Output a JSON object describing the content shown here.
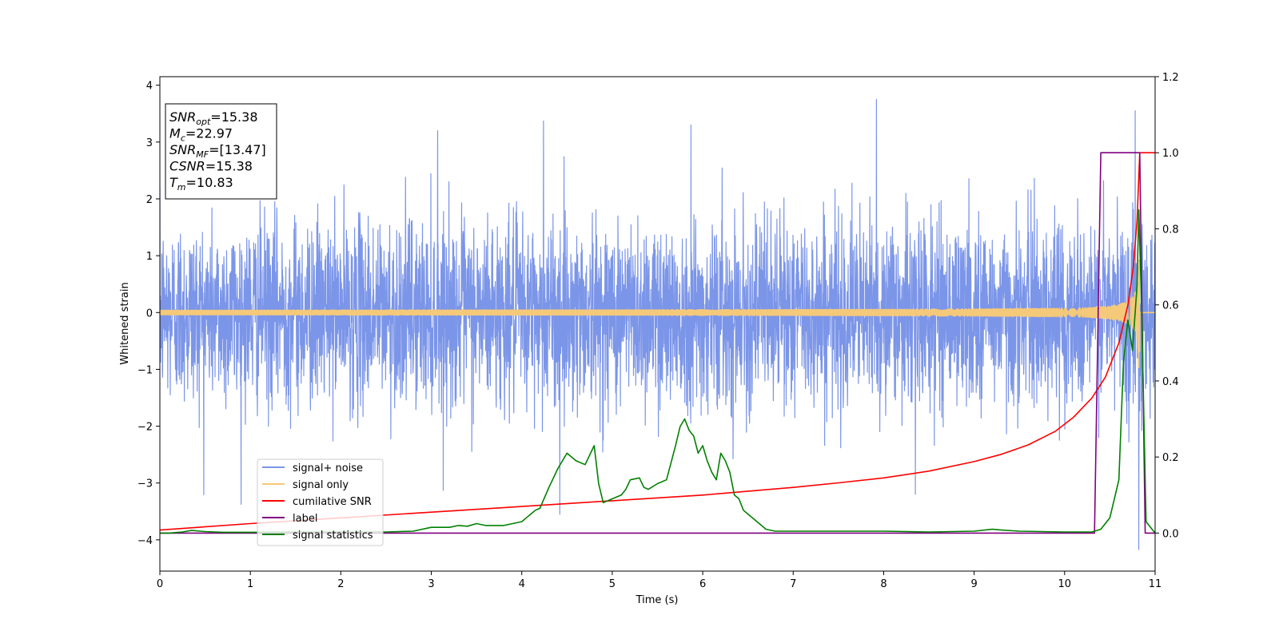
{
  "chart_data": {
    "type": "line",
    "xlabel": "Time (s)",
    "ylabel": "Whitened strain",
    "xlim": [
      0,
      11
    ],
    "ylim": [
      -4.55,
      4.15
    ],
    "y2lim": [
      -0.1,
      1.2
    ],
    "grid": false,
    "xticks": [
      0,
      1,
      2,
      3,
      4,
      5,
      6,
      7,
      8,
      9,
      10,
      11
    ],
    "yticks": [
      -4,
      -3,
      -2,
      -1,
      0,
      1,
      2,
      3,
      4
    ],
    "y2ticks": [
      0.0,
      0.2,
      0.4,
      0.6,
      0.8,
      1.0,
      1.2
    ],
    "info_box": {
      "lines": [
        {
          "sym": "SNR",
          "sub": "opt",
          "value": "=15.38"
        },
        {
          "sym": "M",
          "sub": "c",
          "value": "=22.97"
        },
        {
          "sym": "SNR",
          "sub": "MF",
          "value": "=[13.47]"
        },
        {
          "sym": "CSNR",
          "sub": "",
          "value": "=15.38"
        },
        {
          "sym": "T",
          "sub": "m",
          "value": "=10.83"
        }
      ]
    },
    "legend": {
      "placement": "lower-left",
      "entries": [
        {
          "label": "signal+ noise",
          "color": "#7b95e8"
        },
        {
          "label": "signal only",
          "color": "#f5c97a"
        },
        {
          "label": "cumilative SNR",
          "color": "#ff0000"
        },
        {
          "label": "label",
          "color": "#800080"
        },
        {
          "label": "signal statistics",
          "color": "#008000"
        }
      ]
    },
    "series": [
      {
        "name": "signal+ noise",
        "axis": "left",
        "color": "#7b95e8",
        "kind": "noise",
        "sigma": 0.8,
        "peaks": [
          [
            7.92,
            3.75
          ],
          [
            10.82,
            -4.17
          ],
          [
            10.78,
            3.55
          ],
          [
            4.42,
            -3.55
          ],
          [
            4.24,
            3.37
          ],
          [
            8.35,
            -3.2
          ],
          [
            3.07,
            3.2
          ],
          [
            5.87,
            3.3
          ]
        ]
      },
      {
        "name": "signal only",
        "axis": "left",
        "color": "#f5c97a",
        "kind": "chirp",
        "tm": 10.83,
        "amp_start": 0.04,
        "amp_peak": 1.0
      },
      {
        "name": "cumilative SNR",
        "axis": "right",
        "color": "#ff0000",
        "x": [
          0,
          1,
          2,
          3,
          4,
          5,
          6,
          7,
          7.5,
          8,
          8.5,
          9,
          9.3,
          9.6,
          9.9,
          10.1,
          10.3,
          10.45,
          10.6,
          10.7,
          10.76,
          10.8,
          10.83,
          10.86,
          11
        ],
        "y": [
          0.008,
          0.025,
          0.04,
          0.055,
          0.07,
          0.085,
          0.1,
          0.12,
          0.132,
          0.145,
          0.163,
          0.188,
          0.207,
          0.232,
          0.268,
          0.305,
          0.355,
          0.41,
          0.5,
          0.6,
          0.7,
          0.82,
          1.0,
          1.0,
          1.0
        ]
      },
      {
        "name": "label",
        "axis": "right",
        "color": "#800080",
        "x": [
          0,
          10.33,
          10.4,
          10.83,
          10.89,
          11
        ],
        "y": [
          0,
          0,
          1,
          1,
          0,
          0
        ]
      },
      {
        "name": "signal statistics",
        "axis": "right",
        "color": "#008000",
        "x": [
          0,
          0.1,
          0.25,
          0.35,
          0.5,
          0.7,
          1,
          1.5,
          2,
          2.5,
          2.8,
          3.0,
          3.2,
          3.3,
          3.4,
          3.5,
          3.6,
          3.8,
          3.9,
          4.0,
          4.05,
          4.1,
          4.15,
          4.2,
          4.3,
          4.4,
          4.5,
          4.6,
          4.7,
          4.8,
          4.85,
          4.9,
          5.0,
          5.1,
          5.15,
          5.2,
          5.3,
          5.35,
          5.4,
          5.5,
          5.6,
          5.7,
          5.75,
          5.8,
          5.85,
          5.9,
          5.95,
          6.0,
          6.05,
          6.1,
          6.15,
          6.2,
          6.25,
          6.3,
          6.35,
          6.4,
          6.45,
          6.5,
          6.6,
          6.7,
          6.8,
          7.0,
          7.5,
          8.0,
          8.5,
          9.0,
          9.2,
          9.3,
          9.5,
          10.0,
          10.3,
          10.4,
          10.5,
          10.6,
          10.65,
          10.7,
          10.75,
          10.8,
          10.82,
          10.85,
          10.9,
          11
        ],
        "y": [
          0.0,
          0.0,
          0.003,
          0.007,
          0.004,
          0.002,
          0.002,
          0.003,
          0.003,
          0.003,
          0.005,
          0.015,
          0.015,
          0.02,
          0.018,
          0.025,
          0.02,
          0.02,
          0.025,
          0.03,
          0.04,
          0.05,
          0.06,
          0.065,
          0.12,
          0.17,
          0.21,
          0.19,
          0.18,
          0.23,
          0.13,
          0.08,
          0.09,
          0.1,
          0.115,
          0.14,
          0.145,
          0.12,
          0.115,
          0.13,
          0.14,
          0.23,
          0.28,
          0.3,
          0.27,
          0.255,
          0.21,
          0.23,
          0.19,
          0.16,
          0.14,
          0.21,
          0.19,
          0.16,
          0.1,
          0.09,
          0.06,
          0.05,
          0.03,
          0.01,
          0.005,
          0.005,
          0.005,
          0.005,
          0.003,
          0.005,
          0.01,
          0.008,
          0.005,
          0.003,
          0.003,
          0.01,
          0.04,
          0.14,
          0.45,
          0.56,
          0.48,
          0.65,
          0.85,
          0.6,
          0.03,
          0.0
        ]
      }
    ]
  }
}
